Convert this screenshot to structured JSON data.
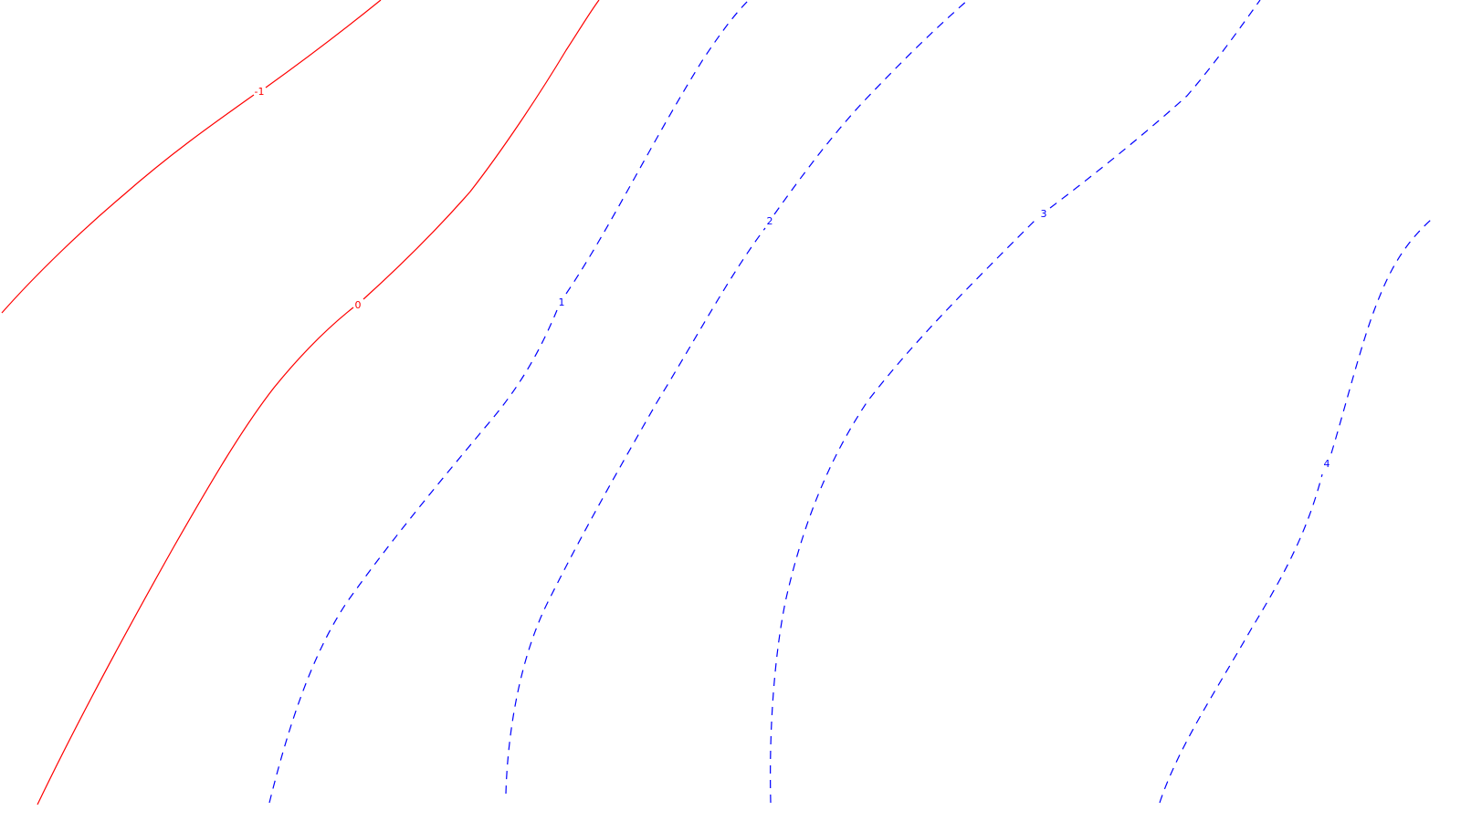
{
  "colors": {
    "background": "#ffffff",
    "negative_and_zero": "#ff0000",
    "positive": "#0000ff"
  },
  "contours": [
    {
      "id": "minus-1",
      "label": "-1",
      "level": -1,
      "color": "#ff0000",
      "style": "solid"
    },
    {
      "id": "0",
      "label": "0",
      "level": 0,
      "color": "#ff0000",
      "style": "solid"
    },
    {
      "id": "1",
      "label": "1",
      "level": 1,
      "color": "#0000ff",
      "style": "dashed"
    },
    {
      "id": "2",
      "label": "2",
      "level": 2,
      "color": "#0000ff",
      "style": "dashed"
    },
    {
      "id": "3",
      "label": "3",
      "level": 3,
      "color": "#0000ff",
      "style": "dashed"
    },
    {
      "id": "4",
      "label": "4",
      "level": 4,
      "color": "#0000ff",
      "style": "dashed"
    }
  ]
}
